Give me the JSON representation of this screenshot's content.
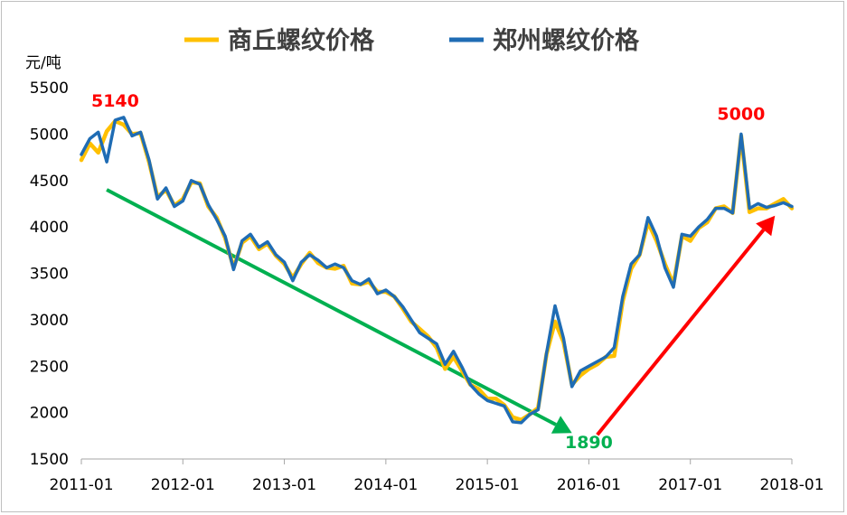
{
  "chart_data": {
    "type": "line",
    "title": "",
    "ylabel": "元/吨",
    "xlabel": "",
    "ylim": [
      1500,
      5500
    ],
    "xlim": [
      "2011-01",
      "2018-01"
    ],
    "yticks": [
      "1500",
      "2000",
      "2500",
      "3000",
      "3500",
      "4000",
      "4500",
      "5000",
      "5500"
    ],
    "xticks": [
      "2011-01",
      "2012-01",
      "2013-01",
      "2014-01",
      "2015-01",
      "2016-01",
      "2017-01",
      "2018-01"
    ],
    "grid": false,
    "legend_position": "top-center",
    "series": [
      {
        "name": "商丘螺纹价格",
        "color": "#ffc000",
        "x": [
          "2011-01",
          "2011-02",
          "2011-03",
          "2011-04",
          "2011-05",
          "2011-06",
          "2011-07",
          "2011-08",
          "2011-09",
          "2011-10",
          "2011-11",
          "2011-12",
          "2012-01",
          "2012-02",
          "2012-03",
          "2012-04",
          "2012-05",
          "2012-06",
          "2012-07",
          "2012-08",
          "2012-09",
          "2012-10",
          "2012-11",
          "2012-12",
          "2013-01",
          "2013-02",
          "2013-03",
          "2013-04",
          "2013-05",
          "2013-06",
          "2013-07",
          "2013-08",
          "2013-09",
          "2013-10",
          "2013-11",
          "2013-12",
          "2014-01",
          "2014-02",
          "2014-03",
          "2014-04",
          "2014-05",
          "2014-06",
          "2014-07",
          "2014-08",
          "2014-09",
          "2014-10",
          "2014-11",
          "2014-12",
          "2015-01",
          "2015-02",
          "2015-03",
          "2015-04",
          "2015-05",
          "2015-06",
          "2015-07",
          "2015-08",
          "2015-09",
          "2015-10",
          "2015-11",
          "2015-12",
          "2016-01",
          "2016-02",
          "2016-03",
          "2016-04",
          "2016-05",
          "2016-06",
          "2016-07",
          "2016-08",
          "2016-09",
          "2016-10",
          "2016-11",
          "2016-12",
          "2017-01",
          "2017-02",
          "2017-03",
          "2017-04",
          "2017-05",
          "2017-06",
          "2017-07",
          "2017-08",
          "2017-09",
          "2017-10",
          "2017-11",
          "2017-12",
          "2018-01"
        ],
        "values": [
          4720,
          4900,
          4800,
          5030,
          5140,
          5100,
          5000,
          5010,
          4700,
          4320,
          4400,
          4230,
          4300,
          4480,
          4470,
          4220,
          4100,
          3880,
          3560,
          3830,
          3900,
          3760,
          3820,
          3690,
          3600,
          3450,
          3600,
          3720,
          3610,
          3560,
          3550,
          3580,
          3390,
          3380,
          3410,
          3300,
          3300,
          3250,
          3120,
          2980,
          2900,
          2820,
          2700,
          2470,
          2600,
          2450,
          2300,
          2250,
          2150,
          2150,
          2080,
          1950,
          1920,
          1980,
          2050,
          2630,
          2980,
          2760,
          2300,
          2400,
          2470,
          2520,
          2600,
          2610,
          3200,
          3550,
          3700,
          4050,
          3850,
          3600,
          3380,
          3900,
          3850,
          3990,
          4050,
          4200,
          4220,
          4150,
          4980,
          4160,
          4200,
          4200,
          4250,
          4300,
          4200
        ]
      },
      {
        "name": "郑州螺纹价格",
        "color": "#1f6cb4",
        "x": [
          "2011-01",
          "2011-02",
          "2011-03",
          "2011-04",
          "2011-05",
          "2011-06",
          "2011-07",
          "2011-08",
          "2011-09",
          "2011-10",
          "2011-11",
          "2011-12",
          "2012-01",
          "2012-02",
          "2012-03",
          "2012-04",
          "2012-05",
          "2012-06",
          "2012-07",
          "2012-08",
          "2012-09",
          "2012-10",
          "2012-11",
          "2012-12",
          "2013-01",
          "2013-02",
          "2013-03",
          "2013-04",
          "2013-05",
          "2013-06",
          "2013-07",
          "2013-08",
          "2013-09",
          "2013-10",
          "2013-11",
          "2013-12",
          "2014-01",
          "2014-02",
          "2014-03",
          "2014-04",
          "2014-05",
          "2014-06",
          "2014-07",
          "2014-08",
          "2014-09",
          "2014-10",
          "2014-11",
          "2014-12",
          "2015-01",
          "2015-02",
          "2015-03",
          "2015-04",
          "2015-05",
          "2015-06",
          "2015-07",
          "2015-08",
          "2015-09",
          "2015-10",
          "2015-11",
          "2015-12",
          "2016-01",
          "2016-02",
          "2016-03",
          "2016-04",
          "2016-05",
          "2016-06",
          "2016-07",
          "2016-08",
          "2016-09",
          "2016-10",
          "2016-11",
          "2016-12",
          "2017-01",
          "2017-02",
          "2017-03",
          "2017-04",
          "2017-05",
          "2017-06",
          "2017-07",
          "2017-08",
          "2017-09",
          "2017-10",
          "2017-11",
          "2017-12",
          "2018-01"
        ],
        "values": [
          4780,
          4950,
          5020,
          4700,
          5150,
          5180,
          4980,
          5020,
          4720,
          4300,
          4420,
          4220,
          4280,
          4500,
          4460,
          4240,
          4080,
          3900,
          3540,
          3850,
          3920,
          3780,
          3840,
          3700,
          3620,
          3420,
          3620,
          3700,
          3640,
          3560,
          3600,
          3560,
          3420,
          3380,
          3440,
          3280,
          3320,
          3250,
          3140,
          3000,
          2860,
          2800,
          2740,
          2520,
          2660,
          2490,
          2300,
          2200,
          2130,
          2100,
          2070,
          1900,
          1890,
          1980,
          2030,
          2640,
          3150,
          2800,
          2280,
          2450,
          2500,
          2550,
          2600,
          2700,
          3250,
          3600,
          3700,
          4100,
          3900,
          3560,
          3350,
          3920,
          3900,
          4000,
          4080,
          4200,
          4200,
          4150,
          5000,
          4200,
          4250,
          4210,
          4230,
          4260,
          4220
        ]
      }
    ],
    "annotations": [
      {
        "text": "5140",
        "color": "#ff0000",
        "x": "2011-05",
        "y": 5140
      },
      {
        "text": "1890",
        "color": "#00b050",
        "x": "2015-05",
        "y": 1890
      },
      {
        "text": "5000",
        "color": "#ff0000",
        "x": "2017-07",
        "y": 5000
      }
    ],
    "arrows": [
      {
        "color": "#00b050",
        "from": {
          "x": "2011-04",
          "y": 4400
        },
        "to": {
          "x": "2015-11",
          "y": 1780
        }
      },
      {
        "color": "#ff0000",
        "from": {
          "x": "2016-02",
          "y": 1760
        },
        "to": {
          "x": "2017-11",
          "y": 4120
        }
      }
    ]
  }
}
